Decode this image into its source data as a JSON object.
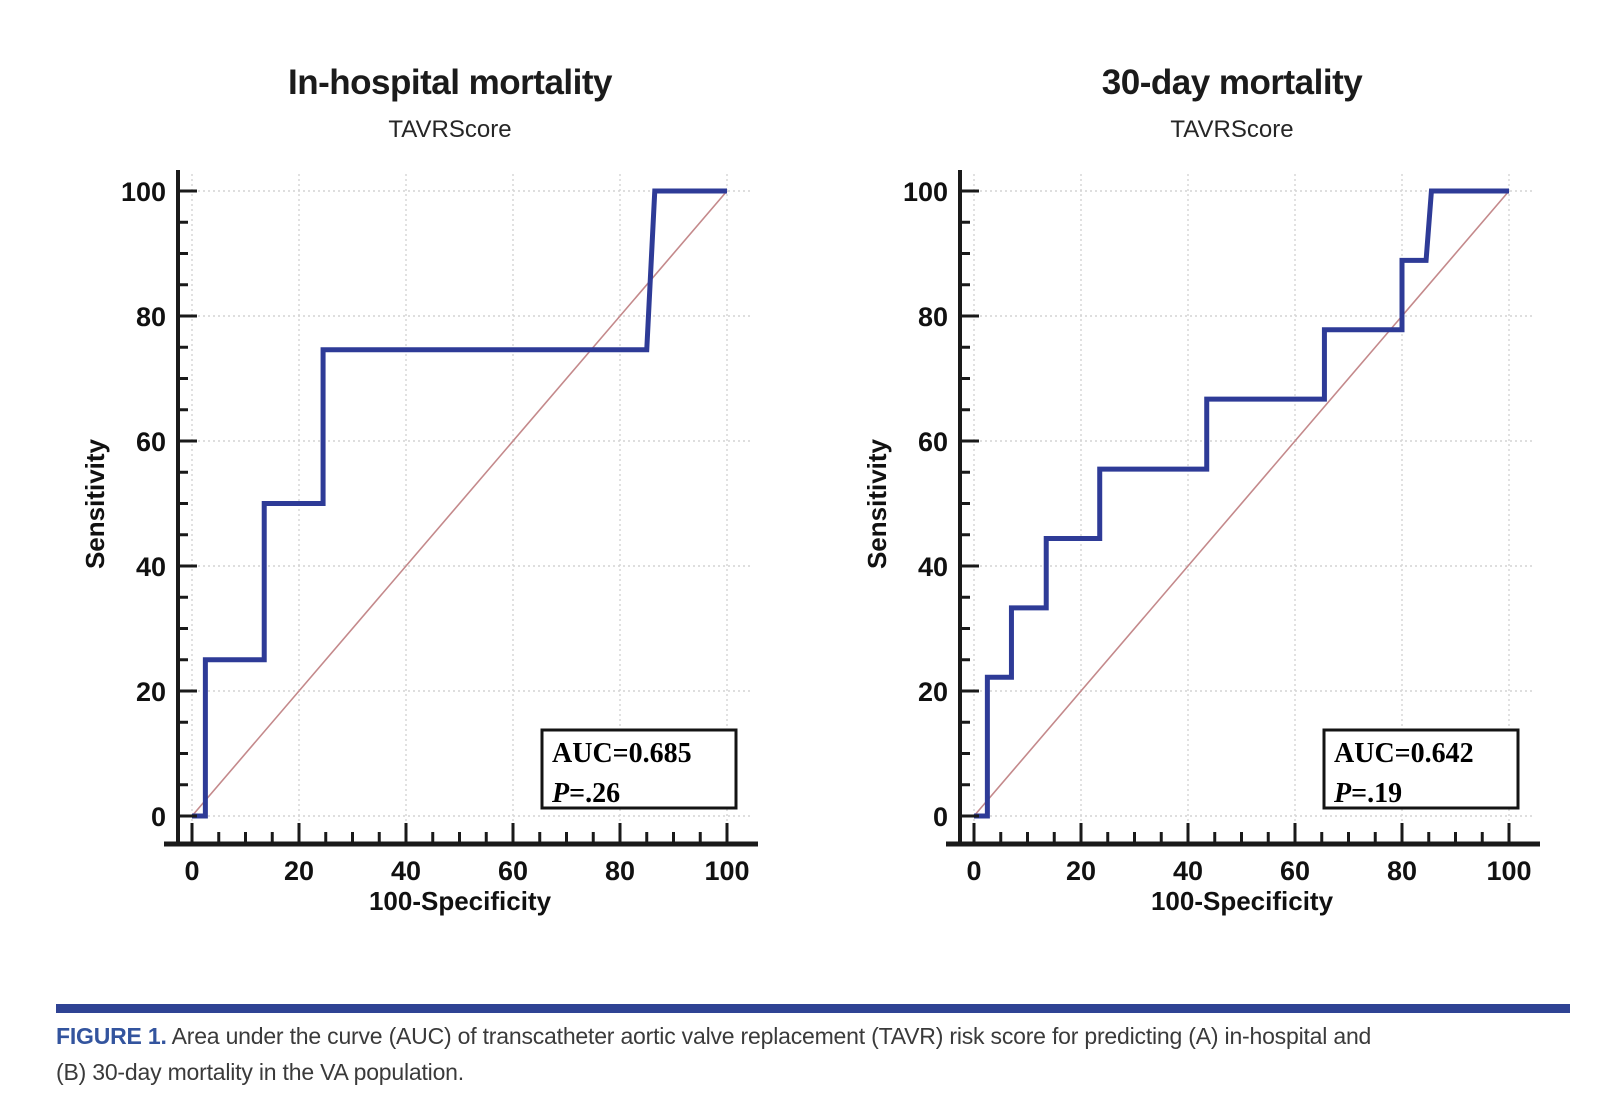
{
  "page": {
    "background": "#ffffff"
  },
  "divider_color": "#2f4394",
  "caption": {
    "label": "FIGURE 1.",
    "label_color": "#33549e",
    "line1": "Area under the curve (AUC) of transcatheter aortic valve replacement (TAVR) risk score for predicting (A) in-hospital and",
    "line2": "(B) 30-day mortality in the VA population."
  },
  "chart_data": [
    {
      "type": "line",
      "title": "In-hospital mortality",
      "subtitle": "TAVRScore",
      "xlabel": "100-Specificity",
      "ylabel": "Sensitivity",
      "xlim": [
        0,
        100
      ],
      "ylim": [
        0,
        100
      ],
      "xticks": [
        0,
        20,
        40,
        60,
        80,
        100
      ],
      "yticks": [
        0,
        20,
        40,
        60,
        80,
        100
      ],
      "minor_tick_step": 5,
      "grid": "dashed",
      "grid_color": "#d4d4d4",
      "legend": "none",
      "series": [
        {
          "name": "ROC curve (TAVRScore)",
          "color": "#2e3b97",
          "points": [
            [
              0,
              0
            ],
            [
              2.5,
              0
            ],
            [
              2.5,
              25
            ],
            [
              13.5,
              25
            ],
            [
              13.5,
              50
            ],
            [
              24.5,
              50
            ],
            [
              24.5,
              74.6
            ],
            [
              85,
              74.6
            ],
            [
              86.5,
              100
            ],
            [
              100,
              100
            ]
          ]
        },
        {
          "name": "chance diagonal",
          "color": "#c4898b",
          "points": [
            [
              0,
              0
            ],
            [
              100,
              100
            ]
          ]
        }
      ],
      "annotation": {
        "auc": "AUC=0.685",
        "p_var": "P",
        "p_value": "=.26"
      }
    },
    {
      "type": "line",
      "title": "30-day mortality",
      "subtitle": "TAVRScore",
      "xlabel": "100-Specificity",
      "ylabel": "Sensitivity",
      "xlim": [
        0,
        100
      ],
      "ylim": [
        0,
        100
      ],
      "xticks": [
        0,
        20,
        40,
        60,
        80,
        100
      ],
      "yticks": [
        0,
        20,
        40,
        60,
        80,
        100
      ],
      "minor_tick_step": 5,
      "grid": "dashed",
      "grid_color": "#d4d4d4",
      "legend": "none",
      "series": [
        {
          "name": "ROC curve (TAVRScore)",
          "color": "#2e3b97",
          "points": [
            [
              0,
              0
            ],
            [
              2.5,
              0
            ],
            [
              2.5,
              22.2
            ],
            [
              7,
              22.2
            ],
            [
              7,
              33.3
            ],
            [
              13.5,
              33.3
            ],
            [
              13.5,
              44.4
            ],
            [
              23.5,
              44.4
            ],
            [
              23.5,
              55.5
            ],
            [
              43.5,
              55.5
            ],
            [
              43.5,
              66.7
            ],
            [
              65.5,
              66.7
            ],
            [
              65.5,
              77.8
            ],
            [
              80,
              77.8
            ],
            [
              80,
              88.9
            ],
            [
              84.5,
              88.9
            ],
            [
              85.5,
              100
            ],
            [
              100,
              100
            ]
          ]
        },
        {
          "name": "chance diagonal",
          "color": "#c4898b",
          "points": [
            [
              0,
              0
            ],
            [
              100,
              100
            ]
          ]
        }
      ],
      "annotation": {
        "auc": "AUC=0.642",
        "p_var": "P",
        "p_value": "=.19"
      }
    }
  ]
}
